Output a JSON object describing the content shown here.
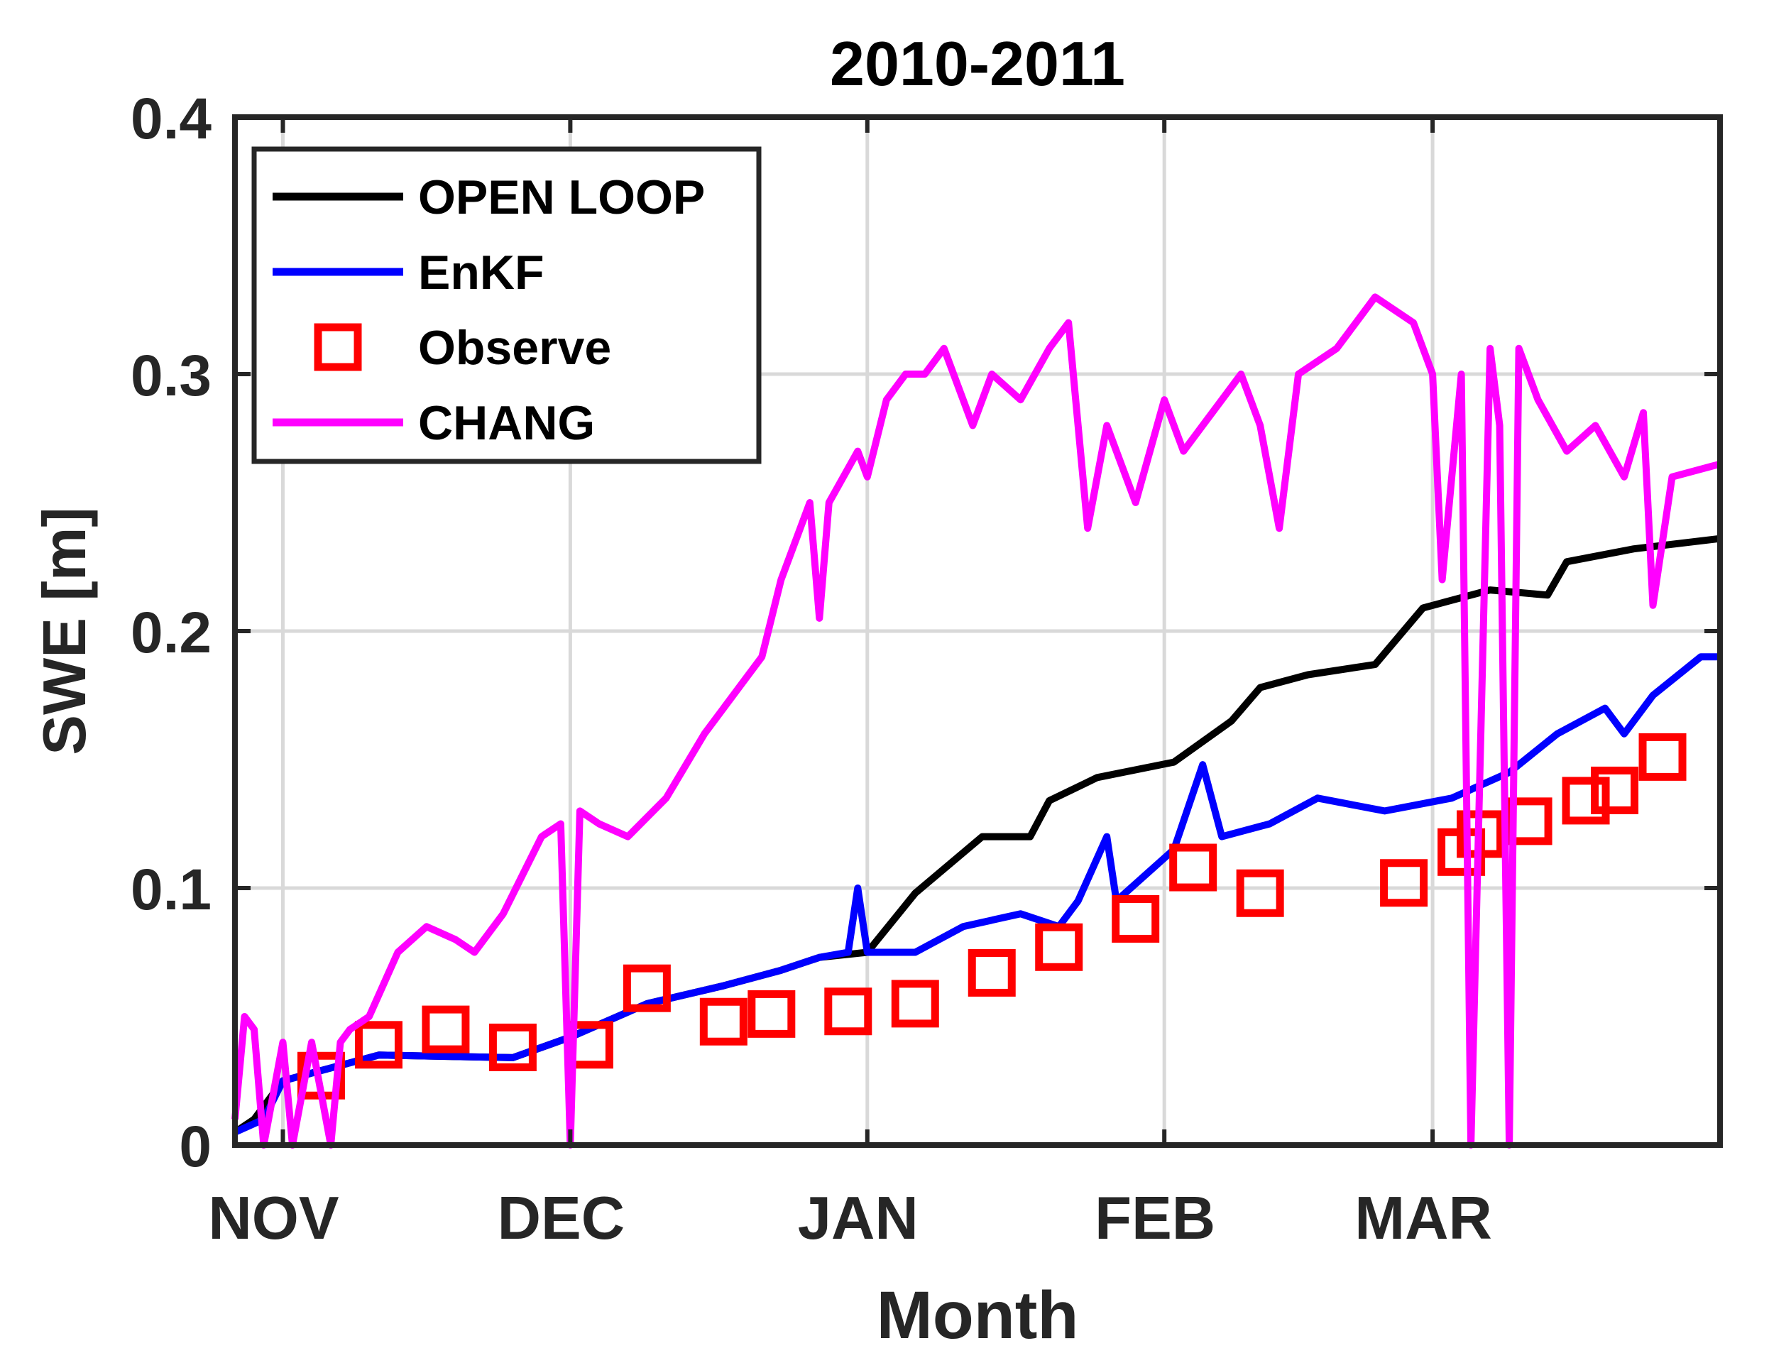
{
  "chart_data": {
    "type": "line",
    "title": "2010-2011",
    "xlabel": "Month",
    "ylabel": "SWE [m]",
    "xlim": [
      "2010-10-27",
      "2011-03-31"
    ],
    "ylim": [
      0,
      0.4
    ],
    "grid": true,
    "legend_placement": "top-left",
    "x_ticks": [
      {
        "date": "2010-11-01",
        "label": "NOV"
      },
      {
        "date": "2010-12-01",
        "label": "DEC"
      },
      {
        "date": "2011-01-01",
        "label": "JAN"
      },
      {
        "date": "2011-02-01",
        "label": "FEB"
      },
      {
        "date": "2011-03-01",
        "label": "MAR"
      }
    ],
    "y_ticks": [
      {
        "value": 0,
        "label": "0"
      },
      {
        "value": 0.1,
        "label": "0.1"
      },
      {
        "value": 0.2,
        "label": "0.2"
      },
      {
        "value": 0.3,
        "label": "0.3"
      },
      {
        "value": 0.4,
        "label": "0.4"
      }
    ],
    "series": [
      {
        "name": "OPEN LOOP",
        "style": "line",
        "color": "#000000",
        "points": [
          [
            "2010-10-27",
            0.005
          ],
          [
            "2010-10-29",
            0.01
          ],
          [
            "2010-11-01",
            0.025
          ],
          [
            "2010-11-06",
            0.03
          ],
          [
            "2010-11-11",
            0.035
          ],
          [
            "2010-11-25",
            0.034
          ],
          [
            "2010-12-01",
            0.042
          ],
          [
            "2010-12-09",
            0.055
          ],
          [
            "2010-12-17",
            0.062
          ],
          [
            "2010-12-23",
            0.068
          ],
          [
            "2010-12-27",
            0.073
          ],
          [
            "2011-01-01",
            0.075
          ],
          [
            "2011-01-06",
            0.098
          ],
          [
            "2011-01-13",
            0.12
          ],
          [
            "2011-01-18",
            0.12
          ],
          [
            "2011-01-20",
            0.134
          ],
          [
            "2011-01-25",
            0.143
          ],
          [
            "2011-02-02",
            0.149
          ],
          [
            "2011-02-08",
            0.165
          ],
          [
            "2011-02-11",
            0.178
          ],
          [
            "2011-02-16",
            0.183
          ],
          [
            "2011-02-23",
            0.187
          ],
          [
            "2011-02-28",
            0.209
          ],
          [
            "2011-03-07",
            0.216
          ],
          [
            "2011-03-13",
            0.214
          ],
          [
            "2011-03-15",
            0.227
          ],
          [
            "2011-03-22",
            0.232
          ],
          [
            "2011-03-31",
            0.236
          ]
        ]
      },
      {
        "name": "EnKF",
        "style": "line",
        "color": "#0000ff",
        "points": [
          [
            "2010-10-27",
            0.005
          ],
          [
            "2010-10-30",
            0.01
          ],
          [
            "2010-11-01",
            0.025
          ],
          [
            "2010-11-06",
            0.03
          ],
          [
            "2010-11-11",
            0.035
          ],
          [
            "2010-11-25",
            0.034
          ],
          [
            "2010-12-01",
            0.042
          ],
          [
            "2010-12-09",
            0.055
          ],
          [
            "2010-12-17",
            0.062
          ],
          [
            "2010-12-23",
            0.068
          ],
          [
            "2010-12-27",
            0.073
          ],
          [
            "2010-12-30",
            0.075
          ],
          [
            "2010-12-31",
            0.1
          ],
          [
            "2011-01-01",
            0.075
          ],
          [
            "2011-01-06",
            0.075
          ],
          [
            "2011-01-11",
            0.085
          ],
          [
            "2011-01-17",
            0.09
          ],
          [
            "2011-01-21",
            0.085
          ],
          [
            "2011-01-23",
            0.095
          ],
          [
            "2011-01-26",
            0.12
          ],
          [
            "2011-01-27",
            0.095
          ],
          [
            "2011-01-30",
            0.105
          ],
          [
            "2011-02-02",
            0.115
          ],
          [
            "2011-02-05",
            0.148
          ],
          [
            "2011-02-07",
            0.12
          ],
          [
            "2011-02-12",
            0.125
          ],
          [
            "2011-02-17",
            0.135
          ],
          [
            "2011-02-24",
            0.13
          ],
          [
            "2011-03-03",
            0.135
          ],
          [
            "2011-03-09",
            0.145
          ],
          [
            "2011-03-14",
            0.16
          ],
          [
            "2011-03-19",
            0.17
          ],
          [
            "2011-03-21",
            0.16
          ],
          [
            "2011-03-24",
            0.175
          ],
          [
            "2011-03-29",
            0.19
          ],
          [
            "2011-03-31",
            0.19
          ]
        ]
      },
      {
        "name": "Observe",
        "style": "marker-square",
        "color": "#ff0000",
        "points": [
          [
            "2010-11-05",
            0.027
          ],
          [
            "2010-11-11",
            0.039
          ],
          [
            "2010-11-18",
            0.045
          ],
          [
            "2010-11-25",
            0.038
          ],
          [
            "2010-12-03",
            0.039
          ],
          [
            "2010-12-09",
            0.061
          ],
          [
            "2010-12-17",
            0.048
          ],
          [
            "2010-12-22",
            0.051
          ],
          [
            "2010-12-30",
            0.052
          ],
          [
            "2011-01-06",
            0.055
          ],
          [
            "2011-01-14",
            0.067
          ],
          [
            "2011-01-21",
            0.077
          ],
          [
            "2011-01-29",
            0.088
          ],
          [
            "2011-02-04",
            0.108
          ],
          [
            "2011-02-11",
            0.098
          ],
          [
            "2011-02-26",
            0.102
          ],
          [
            "2011-03-04",
            0.114
          ],
          [
            "2011-03-06",
            0.121
          ],
          [
            "2011-03-11",
            0.126
          ],
          [
            "2011-03-17",
            0.134
          ],
          [
            "2011-03-20",
            0.138
          ],
          [
            "2011-03-25",
            0.151
          ]
        ]
      },
      {
        "name": "CHANG",
        "style": "line",
        "color": "#ff00ff",
        "points": [
          [
            "2010-10-27",
            0.01
          ],
          [
            "2010-10-28",
            0.05
          ],
          [
            "2010-10-29",
            0.045
          ],
          [
            "2010-10-30",
            0
          ],
          [
            "2010-11-01",
            0.04
          ],
          [
            "2010-11-02",
            0
          ],
          [
            "2010-11-04",
            0.04
          ],
          [
            "2010-11-06",
            0
          ],
          [
            "2010-11-07",
            0.04
          ],
          [
            "2010-11-08",
            0.045
          ],
          [
            "2010-11-10",
            0.05
          ],
          [
            "2010-11-13",
            0.075
          ],
          [
            "2010-11-16",
            0.085
          ],
          [
            "2010-11-19",
            0.08
          ],
          [
            "2010-11-21",
            0.075
          ],
          [
            "2010-11-24",
            0.09
          ],
          [
            "2010-11-26",
            0.105
          ],
          [
            "2010-11-28",
            0.12
          ],
          [
            "2010-11-30",
            0.125
          ],
          [
            "2010-12-01",
            0
          ],
          [
            "2010-12-02",
            0.13
          ],
          [
            "2010-12-04",
            0.125
          ],
          [
            "2010-12-07",
            0.12
          ],
          [
            "2010-12-11",
            0.135
          ],
          [
            "2010-12-15",
            0.16
          ],
          [
            "2010-12-19",
            0.18
          ],
          [
            "2010-12-21",
            0.19
          ],
          [
            "2010-12-23",
            0.22
          ],
          [
            "2010-12-26",
            0.25
          ],
          [
            "2010-12-27",
            0.205
          ],
          [
            "2010-12-28",
            0.25
          ],
          [
            "2010-12-31",
            0.27
          ],
          [
            "2011-01-01",
            0.26
          ],
          [
            "2011-01-03",
            0.29
          ],
          [
            "2011-01-05",
            0.3
          ],
          [
            "2011-01-07",
            0.3
          ],
          [
            "2011-01-09",
            0.31
          ],
          [
            "2011-01-12",
            0.28
          ],
          [
            "2011-01-14",
            0.3
          ],
          [
            "2011-01-17",
            0.29
          ],
          [
            "2011-01-20",
            0.31
          ],
          [
            "2011-01-22",
            0.32
          ],
          [
            "2011-01-24",
            0.24
          ],
          [
            "2011-01-26",
            0.28
          ],
          [
            "2011-01-29",
            0.25
          ],
          [
            "2011-02-01",
            0.29
          ],
          [
            "2011-02-03",
            0.27
          ],
          [
            "2011-02-05",
            0.28
          ],
          [
            "2011-02-07",
            0.29
          ],
          [
            "2011-02-09",
            0.3
          ],
          [
            "2011-02-11",
            0.28
          ],
          [
            "2011-02-13",
            0.24
          ],
          [
            "2011-02-15",
            0.3
          ],
          [
            "2011-02-19",
            0.31
          ],
          [
            "2011-02-23",
            0.33
          ],
          [
            "2011-02-27",
            0.32
          ],
          [
            "2011-03-01",
            0.3
          ],
          [
            "2011-03-02",
            0.22
          ],
          [
            "2011-03-04",
            0.3
          ],
          [
            "2011-03-05",
            0
          ],
          [
            "2011-03-07",
            0.31
          ],
          [
            "2011-03-08",
            0.28
          ],
          [
            "2011-03-09",
            0
          ],
          [
            "2011-03-10",
            0.31
          ],
          [
            "2011-03-12",
            0.29
          ],
          [
            "2011-03-15",
            0.27
          ],
          [
            "2011-03-18",
            0.28
          ],
          [
            "2011-03-21",
            0.26
          ],
          [
            "2011-03-23",
            0.285
          ],
          [
            "2011-03-24",
            0.21
          ],
          [
            "2011-03-26",
            0.26
          ],
          [
            "2011-03-31",
            0.265
          ]
        ]
      }
    ]
  }
}
